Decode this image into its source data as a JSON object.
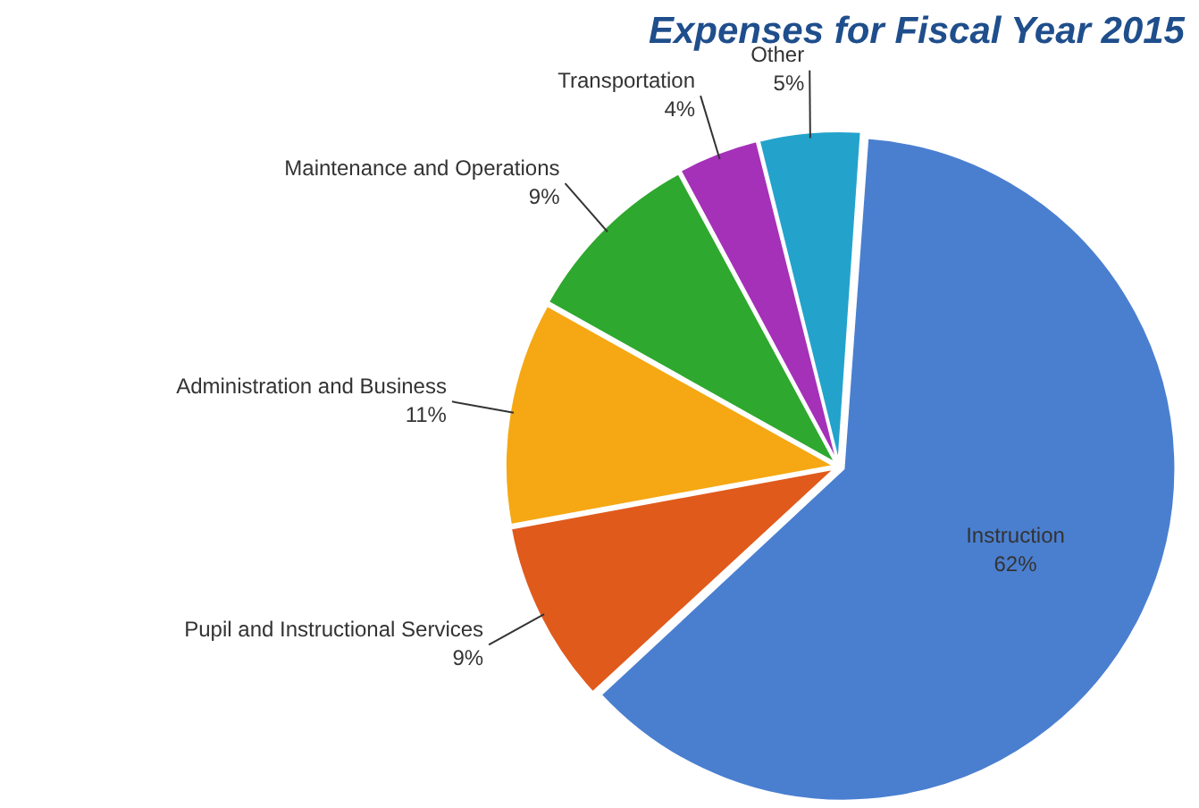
{
  "chart_data": {
    "type": "pie",
    "title": "Expenses for Fiscal Year 2015",
    "categories": [
      "Instruction",
      "Pupil and Instructional Services",
      "Administration and Business",
      "Maintenance and Operations",
      "Transportation",
      "Other"
    ],
    "values": [
      62,
      9,
      11,
      9,
      4,
      5
    ],
    "value_labels": [
      "62%",
      "9%",
      "11%",
      "9%",
      "4%",
      "5%"
    ],
    "colors": [
      "#4a7fd0",
      "#e05a1c",
      "#f5a813",
      "#2ea82e",
      "#a531b8",
      "#23a3cc"
    ],
    "legend": false
  }
}
